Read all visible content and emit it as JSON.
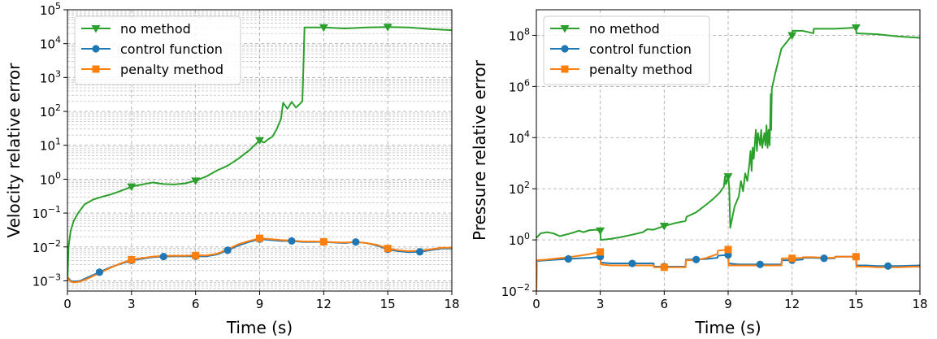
{
  "chart_data": [
    {
      "type": "line",
      "xlabel": "Time (s)",
      "ylabel": "Velocity relative error",
      "xlim": [
        0,
        18
      ],
      "ylim": [
        0.0005,
        100000
      ],
      "yscale": "log",
      "xticks": [
        0,
        3,
        6,
        9,
        12,
        15,
        18
      ],
      "xtick_labels": [
        "0",
        "3",
        "6",
        "9",
        "12",
        "15",
        "18"
      ],
      "yticks": [
        0.001,
        0.01,
        0.1,
        1,
        10,
        100,
        1000,
        10000,
        100000
      ],
      "ytick_labels": [
        {
          "base": "10",
          "exp": "−3"
        },
        {
          "base": "10",
          "exp": "−2"
        },
        {
          "base": "10",
          "exp": "−1"
        },
        {
          "base": "10",
          "exp": "0"
        },
        {
          "base": "10",
          "exp": "1"
        },
        {
          "base": "10",
          "exp": "2"
        },
        {
          "base": "10",
          "exp": "3"
        },
        {
          "base": "10",
          "exp": "4"
        },
        {
          "base": "10",
          "exp": "5"
        }
      ],
      "grid": true,
      "minor_grid": true,
      "legend_position": "top-left",
      "series": [
        {
          "name": "no method",
          "color": "#2ca02c",
          "marker": "triangle-down",
          "x": [
            0,
            0.05,
            0.15,
            0.3,
            0.5,
            0.8,
            1.2,
            1.6,
            2.0,
            2.5,
            3.0,
            3.5,
            4.0,
            4.5,
            5.0,
            5.5,
            6.0,
            6.5,
            7.0,
            7.5,
            8.0,
            8.5,
            9.0,
            9.2,
            9.4,
            9.6,
            9.8,
            10.0,
            10.1,
            10.3,
            10.5,
            10.7,
            10.9,
            11.0,
            11.05,
            11.1,
            12.0,
            13.0,
            14.0,
            15.0,
            16.0,
            17.0,
            18.0
          ],
          "y": [
            0.001,
            0.01,
            0.03,
            0.06,
            0.1,
            0.18,
            0.25,
            0.3,
            0.35,
            0.45,
            0.6,
            0.7,
            0.8,
            0.72,
            0.7,
            0.75,
            0.9,
            1.2,
            1.8,
            2.5,
            4,
            7,
            14,
            12,
            15,
            18,
            30,
            60,
            180,
            120,
            190,
            130,
            170,
            200,
            2000,
            30000,
            30000,
            28000,
            30000,
            31000,
            30000,
            27000,
            25000
          ],
          "marker_x": [
            3,
            6,
            9,
            12,
            15
          ]
        },
        {
          "name": "control function",
          "color": "#1f77b4",
          "marker": "circle",
          "x": [
            0,
            0.05,
            0.15,
            0.3,
            0.6,
            1.0,
            1.5,
            2.0,
            2.5,
            3.0,
            3.5,
            4.0,
            4.5,
            5.0,
            5.5,
            6.0,
            6.5,
            7.0,
            7.5,
            8.0,
            8.5,
            9.0,
            9.5,
            10.0,
            10.5,
            11.0,
            11.5,
            12.0,
            12.5,
            13.0,
            13.5,
            14.0,
            14.5,
            15.0,
            15.5,
            16.0,
            16.5,
            17.0,
            17.5,
            18.0
          ],
          "y": [
            0.0013,
            0.0012,
            0.001,
            0.00095,
            0.001,
            0.0013,
            0.0018,
            0.0025,
            0.0032,
            0.004,
            0.0045,
            0.005,
            0.0052,
            0.0053,
            0.0053,
            0.0053,
            0.0053,
            0.006,
            0.008,
            0.011,
            0.014,
            0.017,
            0.016,
            0.015,
            0.015,
            0.014,
            0.014,
            0.014,
            0.0135,
            0.013,
            0.014,
            0.013,
            0.011,
            0.0085,
            0.0075,
            0.007,
            0.0072,
            0.008,
            0.009,
            0.009
          ],
          "marker_x": [
            1.5,
            3,
            4.5,
            6,
            7.5,
            9,
            10.5,
            12,
            13.5,
            15,
            16.5
          ]
        },
        {
          "name": "penalty method",
          "color": "#ff7f0e",
          "marker": "square",
          "x": [
            0,
            0.05,
            0.15,
            0.3,
            0.6,
            1.0,
            1.5,
            2.0,
            2.5,
            3.0,
            3.5,
            4.0,
            4.5,
            5.0,
            5.5,
            6.0,
            6.5,
            7.0,
            7.5,
            8.0,
            8.5,
            9.0,
            9.5,
            10.0,
            10.5,
            11.0,
            11.5,
            12.0,
            12.5,
            13.0,
            13.5,
            14.0,
            14.5,
            15.0,
            15.5,
            16.0,
            16.5,
            17.0,
            17.5,
            18.0
          ],
          "y": [
            0.0013,
            0.0011,
            0.00095,
            0.0009,
            0.00095,
            0.0012,
            0.0017,
            0.0024,
            0.0033,
            0.0042,
            0.0047,
            0.0052,
            0.0054,
            0.0055,
            0.0055,
            0.0056,
            0.0056,
            0.0063,
            0.0085,
            0.012,
            0.015,
            0.018,
            0.017,
            0.016,
            0.0155,
            0.0145,
            0.0145,
            0.0142,
            0.0138,
            0.0135,
            0.014,
            0.013,
            0.0115,
            0.009,
            0.008,
            0.0075,
            0.0078,
            0.0085,
            0.0095,
            0.0095
          ],
          "marker_x": [
            3,
            6,
            9,
            12,
            15
          ]
        }
      ]
    },
    {
      "type": "line",
      "xlabel": "Time (s)",
      "ylabel": "Pressure relative error",
      "xlim": [
        0,
        18
      ],
      "ylim": [
        0.01,
        1000000000
      ],
      "yscale": "log",
      "xticks": [
        0,
        3,
        6,
        9,
        12,
        15,
        18
      ],
      "xtick_labels": [
        "0",
        "3",
        "6",
        "9",
        "12",
        "15",
        "18"
      ],
      "yticks": [
        0.01,
        1,
        100,
        10000,
        1000000,
        100000000
      ],
      "ytick_labels": [
        {
          "base": "10",
          "exp": "−2"
        },
        {
          "base": "10",
          "exp": "0"
        },
        {
          "base": "10",
          "exp": "2"
        },
        {
          "base": "10",
          "exp": "4"
        },
        {
          "base": "10",
          "exp": "6"
        },
        {
          "base": "10",
          "exp": "8"
        }
      ],
      "grid": true,
      "minor_grid": false,
      "legend_position": "top-left",
      "series": [
        {
          "name": "no method",
          "color": "#2ca02c",
          "marker": "triangle-down",
          "x": [
            0,
            0.2,
            0.5,
            0.8,
            1.1,
            1.5,
            1.8,
            2.0,
            2.2,
            2.5,
            2.8,
            3.0,
            3.02,
            3.5,
            4.0,
            4.5,
            5.0,
            5.2,
            5.5,
            6.0,
            6.5,
            7.0,
            7.05,
            7.5,
            8.0,
            8.3,
            8.6,
            8.8,
            8.85,
            8.9,
            9.0,
            9.05,
            9.1,
            9.3,
            9.5,
            9.6,
            9.7,
            9.8,
            9.9,
            10.0,
            10.05,
            10.1,
            10.15,
            10.2,
            10.3,
            10.35,
            10.4,
            10.5,
            10.55,
            10.6,
            10.7,
            10.75,
            10.8,
            10.85,
            10.9,
            10.95,
            11.0,
            11.02,
            11.05,
            11.2,
            11.5,
            12.0,
            12.02,
            12.5,
            13.0,
            13.02,
            14.0,
            15.0,
            15.02,
            16.0,
            17.0,
            18.0
          ],
          "y": [
            1.2,
            1.8,
            2.0,
            1.8,
            1.4,
            1.7,
            2.0,
            2.3,
            2.0,
            2.4,
            2.5,
            2.3,
            1.0,
            1.1,
            1.3,
            1.6,
            2.0,
            2.6,
            2.5,
            3.5,
            4.5,
            5.5,
            8,
            12,
            25,
            40,
            70,
            120,
            300,
            150,
            300,
            120,
            3,
            20,
            50,
            200,
            80,
            400,
            200,
            1000,
            3000,
            500,
            4000,
            1500,
            20000,
            3000,
            15000,
            5000,
            20000,
            4000,
            15000,
            5000,
            30000,
            4000,
            20000,
            5000,
            500000,
            20000,
            800000,
            3000000,
            30000000,
            100000000,
            150000000,
            150000000,
            120000000,
            180000000,
            180000000,
            200000000,
            120000000,
            110000000,
            90000000,
            80000000
          ],
          "marker_x": [
            3,
            6,
            9,
            12,
            15
          ]
        },
        {
          "name": "control function",
          "color": "#1f77b4",
          "marker": "circle",
          "x": [
            0,
            0.02,
            0.5,
            1.0,
            1.5,
            2.0,
            2.5,
            3.0,
            3.02,
            3.5,
            4.0,
            4.5,
            5.0,
            5.5,
            5.52,
            6.0,
            6.5,
            7.0,
            7.02,
            7.5,
            8.0,
            8.5,
            8.52,
            9.0,
            9.02,
            9.5,
            10.0,
            10.5,
            10.52,
            11.0,
            11.5,
            11.52,
            12.0,
            12.5,
            12.52,
            13.0,
            13.5,
            14.0,
            14.02,
            14.5,
            15.0,
            15.02,
            15.5,
            16.0,
            16.5,
            17.0,
            17.5,
            18.0
          ],
          "y": [
            0.01,
            0.15,
            0.16,
            0.17,
            0.18,
            0.19,
            0.2,
            0.22,
            0.13,
            0.12,
            0.12,
            0.12,
            0.12,
            0.12,
            0.09,
            0.09,
            0.09,
            0.09,
            0.17,
            0.17,
            0.18,
            0.2,
            0.24,
            0.26,
            0.12,
            0.11,
            0.11,
            0.11,
            0.11,
            0.11,
            0.11,
            0.16,
            0.16,
            0.17,
            0.2,
            0.2,
            0.19,
            0.19,
            0.22,
            0.22,
            0.22,
            0.1,
            0.1,
            0.095,
            0.095,
            0.095,
            0.098,
            0.1
          ],
          "marker_x": [
            1.5,
            3,
            4.5,
            6,
            7.5,
            9,
            10.5,
            12,
            13.5,
            15,
            16.5
          ]
        },
        {
          "name": "penalty method",
          "color": "#ff7f0e",
          "marker": "square",
          "x": [
            0,
            0.02,
            0.5,
            1.0,
            1.5,
            2.0,
            2.5,
            3.0,
            3.02,
            3.5,
            4.0,
            4.5,
            5.0,
            5.5,
            5.52,
            6.0,
            6.5,
            7.0,
            7.02,
            7.5,
            8.0,
            8.5,
            8.52,
            9.0,
            9.02,
            9.5,
            10.0,
            10.5,
            10.52,
            11.0,
            11.5,
            11.52,
            12.0,
            12.5,
            12.52,
            13.0,
            13.5,
            14.0,
            14.02,
            14.5,
            15.0,
            15.02,
            15.5,
            16.0,
            16.5,
            17.0,
            17.5,
            18.0
          ],
          "y": [
            0.01,
            0.16,
            0.17,
            0.19,
            0.21,
            0.24,
            0.28,
            0.34,
            0.11,
            0.1,
            0.1,
            0.1,
            0.1,
            0.1,
            0.085,
            0.085,
            0.085,
            0.085,
            0.16,
            0.16,
            0.2,
            0.28,
            0.38,
            0.42,
            0.1,
            0.1,
            0.1,
            0.1,
            0.1,
            0.1,
            0.1,
            0.19,
            0.19,
            0.2,
            0.21,
            0.21,
            0.2,
            0.2,
            0.22,
            0.22,
            0.22,
            0.09,
            0.09,
            0.085,
            0.085,
            0.085,
            0.088,
            0.09
          ],
          "marker_x": [
            3,
            6,
            9,
            12,
            15
          ]
        }
      ]
    }
  ]
}
